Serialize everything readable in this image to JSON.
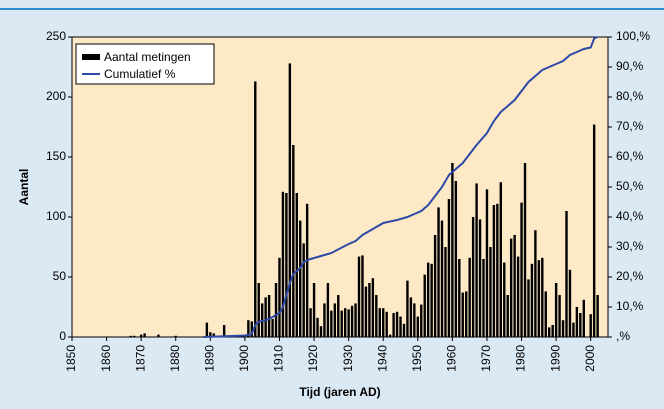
{
  "chart_data": {
    "type": "bar-line",
    "xlabel": "Tijd (jaren AD)",
    "ylabel": "Aantal",
    "xlim": [
      1850,
      2005
    ],
    "xticks": [
      1850,
      1860,
      1870,
      1880,
      1890,
      1900,
      1910,
      1920,
      1930,
      1940,
      1950,
      1960,
      1970,
      1980,
      1990,
      2000
    ],
    "ylim": [
      0,
      250
    ],
    "yticks": [
      0,
      50,
      100,
      150,
      200,
      250
    ],
    "y2lim": [
      0,
      100
    ],
    "y2ticks": [
      {
        "value": 0,
        "label": ",%"
      },
      {
        "value": 10,
        "label": "10,%"
      },
      {
        "value": 20,
        "label": "20,%"
      },
      {
        "value": 30,
        "label": "30,%"
      },
      {
        "value": 40,
        "label": "40,%"
      },
      {
        "value": 50,
        "label": "50,%"
      },
      {
        "value": 60,
        "label": "60,%"
      },
      {
        "value": 70,
        "label": "70,%"
      },
      {
        "value": 80,
        "label": "80,%"
      },
      {
        "value": 90,
        "label": "90,%"
      },
      {
        "value": 100,
        "label": "100,%"
      }
    ],
    "legend": "upper left",
    "series": [
      {
        "name": "Aantal metingen",
        "type": "bar",
        "color": "#000000",
        "x": [
          1867,
          1868,
          1870,
          1871,
          1875,
          1880,
          1889,
          1890,
          1891,
          1894,
          1901,
          1902,
          1903,
          1904,
          1905,
          1906,
          1907,
          1908,
          1909,
          1910,
          1911,
          1912,
          1913,
          1914,
          1915,
          1916,
          1917,
          1918,
          1919,
          1920,
          1921,
          1922,
          1923,
          1924,
          1925,
          1926,
          1927,
          1928,
          1929,
          1930,
          1931,
          1932,
          1933,
          1934,
          1935,
          1936,
          1937,
          1938,
          1939,
          1940,
          1941,
          1942,
          1943,
          1944,
          1945,
          1946,
          1947,
          1948,
          1949,
          1950,
          1951,
          1952,
          1953,
          1954,
          1955,
          1956,
          1957,
          1958,
          1959,
          1960,
          1961,
          1962,
          1963,
          1964,
          1965,
          1966,
          1967,
          1968,
          1969,
          1970,
          1971,
          1972,
          1973,
          1974,
          1975,
          1976,
          1977,
          1978,
          1979,
          1980,
          1981,
          1982,
          1983,
          1984,
          1985,
          1986,
          1987,
          1988,
          1989,
          1990,
          1991,
          1992,
          1993,
          1994,
          1995,
          1996,
          1997,
          1998,
          2000,
          2001,
          2002
        ],
        "values": [
          1,
          1,
          2,
          3,
          2,
          1,
          12,
          4,
          3,
          10,
          14,
          13,
          213,
          45,
          28,
          33,
          35,
          15,
          45,
          66,
          121,
          120,
          228,
          160,
          120,
          97,
          78,
          111,
          24,
          45,
          16,
          9,
          28,
          45,
          22,
          28,
          35,
          22,
          24,
          23,
          26,
          28,
          67,
          68,
          42,
          45,
          49,
          35,
          24,
          24,
          21,
          2,
          20,
          21,
          17,
          11,
          47,
          33,
          28,
          17,
          27,
          52,
          62,
          61,
          85,
          108,
          97,
          75,
          115,
          145,
          130,
          65,
          37,
          38,
          66,
          100,
          128,
          98,
          65,
          123,
          75,
          110,
          111,
          129,
          62,
          35,
          82,
          85,
          67,
          112,
          145,
          48,
          61,
          89,
          64,
          66,
          38,
          8,
          10,
          45,
          35,
          14,
          105,
          56,
          12,
          25,
          20,
          31,
          19,
          177,
          35
        ]
      },
      {
        "name": "Cumulatief %",
        "type": "line",
        "axis": "y2",
        "color": "#2e4aa8",
        "x": [
          1888,
          1900,
          1902,
          1903,
          1904,
          1907,
          1910,
          1911,
          1912,
          1913,
          1914,
          1916,
          1917,
          1919,
          1922,
          1925,
          1930,
          1932,
          1934,
          1937,
          1940,
          1944,
          1947,
          1949,
          1951,
          1953,
          1955,
          1957,
          1959,
          1961,
          1963,
          1965,
          1967,
          1970,
          1972,
          1974,
          1976,
          1978,
          1980,
          1982,
          1984,
          1986,
          1988,
          1990,
          1992,
          1994,
          1996,
          1998,
          2000,
          2001,
          2002
        ],
        "values": [
          0,
          0.5,
          1,
          4,
          5,
          6,
          8,
          10,
          14,
          18,
          21,
          23,
          25,
          26,
          27,
          28,
          31,
          32,
          34,
          36,
          38,
          39,
          40,
          41,
          42,
          44,
          47,
          50,
          54,
          56,
          58,
          61,
          64,
          68,
          72,
          75,
          77,
          79,
          82,
          85,
          87,
          89,
          90,
          91,
          92,
          94,
          95,
          96,
          96.5,
          99.5,
          100
        ]
      }
    ]
  }
}
